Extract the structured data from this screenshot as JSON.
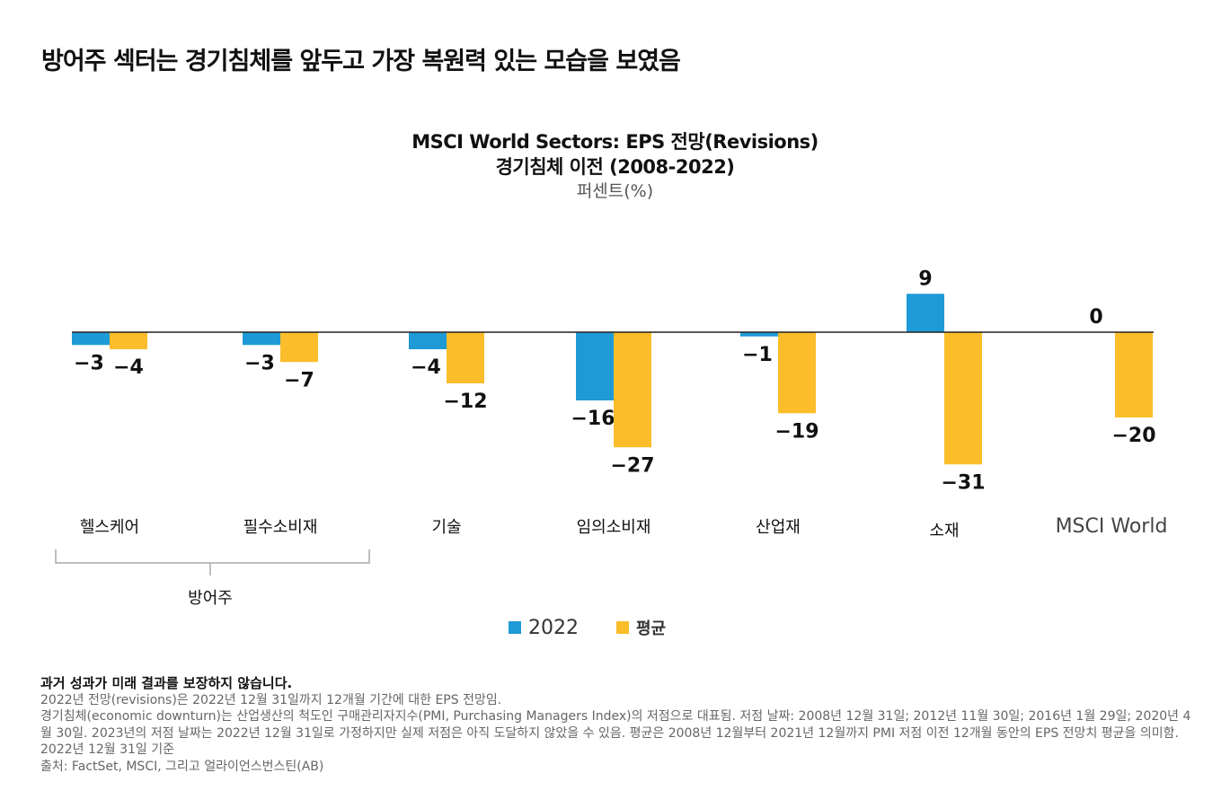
{
  "heading": "방어주 섹터는 경기침체를 앞두고 가장 복원력 있는 모습을 보였음",
  "chart_data": {
    "type": "bar",
    "title": "MSCI World Sectors: EPS 전망(Revisions)",
    "subtitle": "경기침체 이전 (2008-2022)",
    "unit_label": "퍼센트(%)",
    "categories": [
      "헬스케어",
      "필수소비재",
      "기술",
      "임의소비재",
      "산업재",
      "소재",
      "MSCI World"
    ],
    "series": [
      {
        "name": "2022",
        "color": "#1e9ad6",
        "values": [
          -3,
          -3,
          -4,
          -16,
          -1,
          9,
          0
        ]
      },
      {
        "name": "평균",
        "color": "#fbbd2a",
        "values": [
          -4,
          -7,
          -12,
          -27,
          -19,
          -31,
          -20
        ]
      }
    ],
    "group_bracket": {
      "label": "방어주",
      "categories": [
        "헬스케어",
        "필수소비재"
      ]
    },
    "legend_position": "bottom",
    "grid": false
  },
  "footnotes": {
    "disclaimer": "과거 성과가 미래 결과를 보장하지 않습니다.",
    "lines": [
      "2022년 전망(revisions)은 2022년 12월 31일까지 12개월 기간에 대한 EPS 전망임.",
      "경기침체(economic downturn)는 산업생산의 척도인 구매관리자지수(PMI, Purchasing Managers Index)의 저점으로 대표됨. 저점 날짜: 2008년 12월 31일; 2012년 11월 30일; 2016년 1월 29일; 2020년 4월 30일. 2023년의 저점 날짜는 2022년 12월 31일로 가정하지만 실제 저점은 아직 도달하지 않았을 수 있음. 평균은 2008년 12월부터 2021년 12월까지 PMI 저점 이전 12개월 동안의 EPS 전망치 평균을 의미함.",
      "2022년 12월 31일 기준",
      "출처: FactSet, MSCI, 그리고 얼라이언스번스틴(AB)"
    ]
  }
}
